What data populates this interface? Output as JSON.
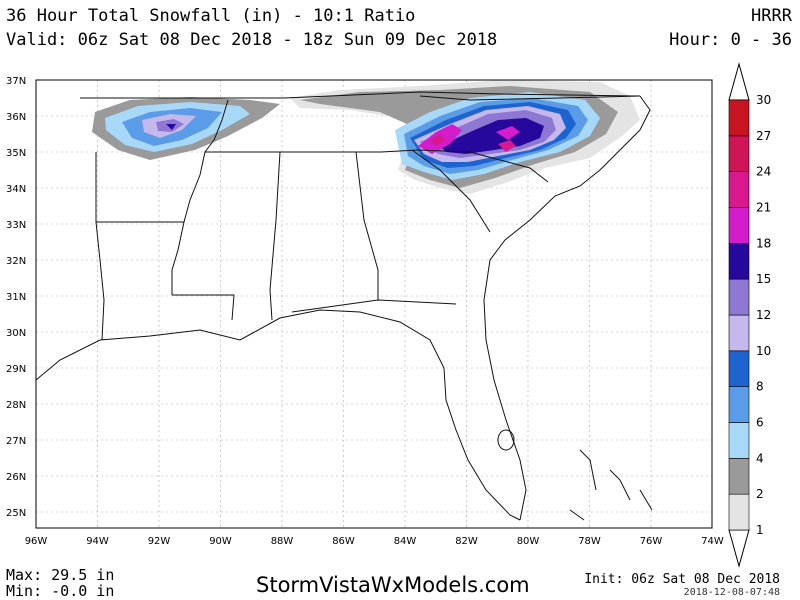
{
  "header": {
    "title": "36 Hour Total Snowfall (in) - 10:1 Ratio",
    "valid": "Valid: 06z Sat 08 Dec 2018 - 18z Sun 09 Dec 2018",
    "model": "HRRR",
    "hour_range": "Hour: 0 - 36"
  },
  "map": {
    "lat_labels": [
      "37N",
      "36N",
      "35N",
      "34N",
      "33N",
      "32N",
      "31N",
      "30N",
      "29N",
      "28N",
      "27N",
      "26N",
      "25N"
    ],
    "lon_labels": [
      "96W",
      "94W",
      "92W",
      "90W",
      "88W",
      "86W",
      "84W",
      "82W",
      "80W",
      "78W",
      "76W",
      "74W"
    ]
  },
  "legend": {
    "levels": [
      "1",
      "2",
      "4",
      "6",
      "8",
      "10",
      "12",
      "15",
      "18",
      "21",
      "24",
      "27",
      "30"
    ],
    "colors": [
      "#e4e4e4",
      "#9a9a9a",
      "#a8d8f8",
      "#5a9ce8",
      "#1e64d0",
      "#c4b8ec",
      "#8e78d4",
      "#26089c",
      "#d41ccc",
      "#d8188c",
      "#d01458",
      "#c81420"
    ]
  },
  "footer": {
    "max": "Max: 29.5 in",
    "min": "Min: -0.0 in",
    "website": "StormVistaWxModels.com",
    "init": "Init: 06z Sat 08 Dec 2018",
    "stamp": "2018-12-08-07:48"
  }
}
